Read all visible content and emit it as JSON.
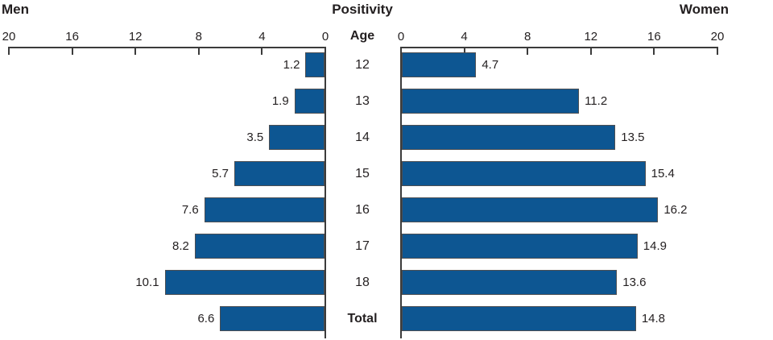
{
  "header": {
    "men": "Men",
    "center": "Positivity",
    "women": "Women",
    "age": "Age"
  },
  "chart_data": {
    "type": "bar",
    "variant": "population-pyramid",
    "title": "Positivity",
    "categories": [
      "12",
      "13",
      "14",
      "15",
      "16",
      "17",
      "18",
      "Total"
    ],
    "category_axis_label": "Age",
    "series": [
      {
        "name": "Men",
        "side": "left",
        "values": [
          1.2,
          1.9,
          3.5,
          5.7,
          7.6,
          8.2,
          10.1,
          6.6
        ]
      },
      {
        "name": "Women",
        "side": "right",
        "values": [
          4.7,
          11.2,
          13.5,
          15.4,
          16.2,
          14.9,
          13.6,
          14.8
        ]
      }
    ],
    "value_labels": {
      "men": [
        "1.2",
        "1.9",
        "3.5",
        "5.7",
        "7.6",
        "8.2",
        "10.1",
        "6.6"
      ],
      "women": [
        "4.7",
        "11.2",
        "13.5",
        "15.4",
        "16.2",
        "14.9",
        "13.6",
        "14.8"
      ]
    },
    "axis": {
      "min": 0,
      "max": 20,
      "ticks": [
        0,
        4,
        8,
        12,
        16,
        20
      ],
      "left_axis_direction": "reversed",
      "grid": false
    },
    "colors": {
      "bar_fill": "#0d5692",
      "bar_border": "#4d4f53",
      "axis": "#3b3b3b",
      "text": "#231f20"
    },
    "legend": "none"
  }
}
